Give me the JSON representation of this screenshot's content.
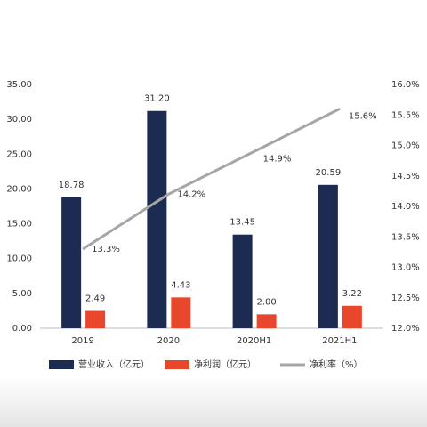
{
  "chart_data": {
    "type": "bar-line",
    "categories": [
      "2019",
      "2020",
      "2020H1",
      "2021H1"
    ],
    "series": [
      {
        "name": "营业收入（亿元）",
        "color": "#1c2b52",
        "values": [
          18.78,
          31.2,
          13.45,
          20.59
        ],
        "value_labels": [
          "18.78",
          "31.20",
          "13.45",
          "20.59"
        ]
      },
      {
        "name": "净利润（亿元）",
        "color": "#e8472b",
        "values": [
          2.49,
          4.43,
          2.0,
          3.22
        ],
        "value_labels": [
          "2.49",
          "4.43",
          "2.00",
          "3.22"
        ]
      },
      {
        "name": "净利率（%）",
        "color": "#a6a6a6",
        "axis": "y2",
        "type": "line",
        "values": [
          13.3,
          14.2,
          14.9,
          15.6
        ],
        "value_labels": [
          "13.3%",
          "14.2%",
          "14.9%",
          "15.6%"
        ]
      }
    ],
    "ylim": [
      0,
      35
    ],
    "yticks": [
      {
        "value": 0,
        "label": "0.00"
      },
      {
        "value": 5,
        "label": "5.00"
      },
      {
        "value": 10,
        "label": "10.00"
      },
      {
        "value": 15,
        "label": "15.00"
      },
      {
        "value": 20,
        "label": "20.00"
      },
      {
        "value": 25,
        "label": "25.00"
      },
      {
        "value": 30,
        "label": "30.00"
      },
      {
        "value": 35,
        "label": "35.00"
      }
    ],
    "y2lim": [
      12,
      16
    ],
    "y2ticks": [
      {
        "value": 12,
        "label": "12.0%"
      },
      {
        "value": 12.5,
        "label": "12.5%"
      },
      {
        "value": 13,
        "label": "13.0%"
      },
      {
        "value": 13.5,
        "label": "13.5%"
      },
      {
        "value": 14,
        "label": "14.0%"
      },
      {
        "value": 14.5,
        "label": "14.5%"
      },
      {
        "value": 15,
        "label": "15.0%"
      },
      {
        "value": 15.5,
        "label": "15.5%"
      },
      {
        "value": 16,
        "label": "16.0%"
      }
    ]
  }
}
